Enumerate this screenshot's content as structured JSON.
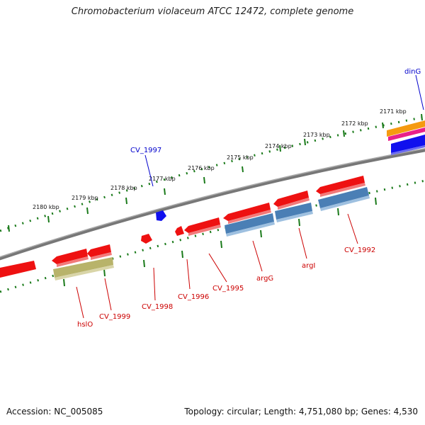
{
  "title": "Chromobacterium violaceum ATCC 12472, complete genome",
  "footer": {
    "accession": "Accession: NC_005085",
    "summary": "Topology: circular; Length: 4,751,080 bp; Genes: 4,530"
  },
  "colors": {
    "forward_gene": "#ee1111",
    "reverse_gene": "#ee1111",
    "cds_blue": "#4a7fb5",
    "olive": "#b8b36a",
    "dark_blue": "#1010ee",
    "orange": "#f59a10",
    "magenta": "#e8208a",
    "backbone": "#888888",
    "tick": "#1a7a1a",
    "label_red": "#cc0000",
    "label_blue": "#0000cc"
  },
  "scale": {
    "unit": "kbp",
    "ticks": [
      "2171 kbp",
      "2172 kbp",
      "2173 kbp",
      "2174 kbp",
      "2175 kbp",
      "2176 kbp",
      "2177 kbp",
      "2178 kbp",
      "2179 kbp",
      "2180 kbp"
    ]
  },
  "gene_labels": [
    {
      "text": "dinG",
      "color": "blue"
    },
    {
      "text": "CV_1997",
      "color": "blue"
    },
    {
      "text": "CV_1992",
      "color": "red"
    },
    {
      "text": "argI",
      "color": "red"
    },
    {
      "text": "argG",
      "color": "red"
    },
    {
      "text": "CV_1995",
      "color": "red"
    },
    {
      "text": "CV_1996",
      "color": "red"
    },
    {
      "text": "CV_1998",
      "color": "red"
    },
    {
      "text": "CV_1999",
      "color": "red"
    },
    {
      "text": "hslO",
      "color": "red"
    }
  ]
}
